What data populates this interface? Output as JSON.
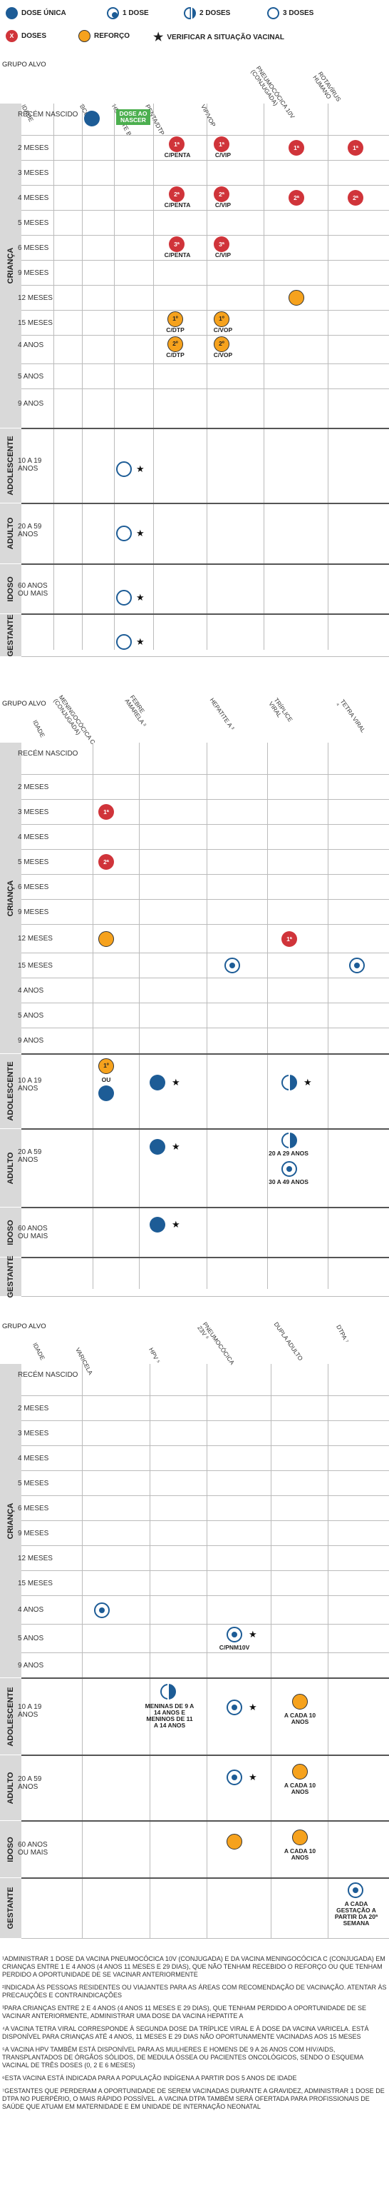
{
  "legend": {
    "dose_unica": "DOSE ÚNICA",
    "uma_dose": "1 DOSE",
    "duas_doses": "2 DOSES",
    "tres_doses": "3 DOSES",
    "doses": "DOSES",
    "doses_mark": "X",
    "reforco": "REFORÇO",
    "verificar": "VERIFICAR A SITUAÇÃO VACINAL"
  },
  "grupo_alvo": "GRUPO ALVO",
  "idade": "IDADE",
  "groups": {
    "crianca": "CRIANÇA",
    "adolescente": "ADOLESCENTE",
    "adulto": "ADULTO",
    "idoso": "IDOSO",
    "gestante": "GESTANTE"
  },
  "ages": {
    "rn": "RECÉM NASCIDO",
    "m2": "2 MESES",
    "m3": "3 MESES",
    "m4": "4 MESES",
    "m5": "5 MESES",
    "m6": "6 MESES",
    "m9": "9 MESES",
    "m12": "12 MESES",
    "m15": "15 MESES",
    "a4": "4 ANOS",
    "a5": "5 ANOS",
    "a9": "9 ANOS",
    "adol": "10 A 19 ANOS",
    "adul": "20 A 59 ANOS",
    "idos": "60 ANOS OU MAIS"
  },
  "t1_cols": [
    "BCG",
    "HEPATITE B",
    "PENTA/DTP",
    "VIP/VOP",
    "PNEUMOCÓCICA 10V (CONJUGADA)",
    "ROTAVÍRUS HUMANO"
  ],
  "t2_cols": [
    "MENINGOCÓCICA C (CONJUGADA)",
    "FEBRE AMARELA ²",
    "HEPATITE A ³",
    "TRÍPLICE VIRAL",
    "TETRA VIRAL ⁴"
  ],
  "t3_cols": [
    "VARICELA",
    "HPV ⁵",
    "PNEUMOCÓCICA 23V ⁶",
    "DUPLA ADULTO",
    "DTPA ⁷"
  ],
  "marks": {
    "d1": "1ª",
    "d2": "2ª",
    "d3": "3ª",
    "r1": "1º",
    "r2": "2º",
    "c_penta": "C/PENTA",
    "c_vip": "C/VIP",
    "c_dtp": "C/DTP",
    "c_vop": "C/VOP",
    "dose_ao_nascer": "DOSE AO NASCER",
    "ou": "OU",
    "a2029": "20 A 29 ANOS",
    "a3049": "30 A 49 ANOS",
    "c_pnm": "C/PNM10V",
    "hpv_adol": "MENINAS DE 9 A 14 ANOS E MENINOS DE 11 A 14 ANOS",
    "cada10": "A CADA 10 ANOS",
    "dtpa_gest": "A CADA GESTAÇÃO A PARTIR DA 20ª SEMANA"
  },
  "notes": [
    "¹ADMINISTRAR 1 DOSE DA VACINA PNEUMOCÓCICA 10V (CONJUGADA) E DA VACINA MENINGOCÓCICA C (CONJUGADA) EM CRIANÇAS ENTRE 1 E 4 ANOS (4 ANOS 11 MESES E 29 DIAS), QUE NÃO TENHAM RECEBIDO O REFORÇO OU QUE TENHAM PERDIDO A OPORTUNIDADE DE SE VACINAR ANTERIORMENTE",
    "²INDICADA ÀS PESSOAS RESIDENTES OU VIAJANTES PARA AS ÁREAS COM RECOMENDAÇÃO DE VACINAÇÃO. ATENTAR ÀS PRECAUÇÕES E CONTRAINDICAÇÕES",
    "³PARA CRIANÇAS ENTRE 2 E 4 ANOS (4 ANOS 11 MESES E 29 DIAS), QUE TENHAM PERDIDO A OPORTUNIDADE DE SE VACINAR ANTERIORMENTE, ADMINISTRAR UMA DOSE DA VACINA HEPATITE A",
    "⁴A VACINA TETRA VIRAL CORRESPONDE À SEGUNDA DOSE DA TRÍPLICE VIRAL E À DOSE DA VACINA VARICELA. ESTÁ DISPONÍVEL PARA CRIANÇAS ATÉ 4 ANOS, 11 MESES E 29 DIAS NÃO OPORTUNAMENTE VACINADAS AOS 15 MESES",
    "⁵A VACINA HPV TAMBÉM ESTÁ DISPONÍVEL PARA AS MULHERES E HOMENS DE 9 A 26 ANOS COM HIV/AIDS, TRANSPLANTADOS DE ÓRGÃOS SÓLIDOS, DE MEDULA ÓSSEA OU PACIENTES ONCOLÓGICOS, SENDO O ESQUEMA VACINAL DE TRÊS DOSES (0, 2 E 6 MESES)",
    "⁶ESTA VACINA ESTÁ INDICADA PARA A POPULAÇÃO INDÍGENA A PARTIR DOS 5 ANOS DE IDADE",
    "⁷GESTANTES QUE PERDERAM A OPORTUNIDADE DE SEREM VACINADAS DURANTE A GRAVIDEZ, ADMINISTRAR 1 DOSE DE DTPA NO PUERPÉRIO, O MAIS RÁPIDO POSSÍVEL. A VACINA DTPA TAMBÉM SERÁ OFERTADA PARA PROFISSIONAIS DE SAÚDE QUE ATUAM EM MATERNIDADE E EM UNIDADE DE INTERNAÇÃO NEONATAL"
  ]
}
